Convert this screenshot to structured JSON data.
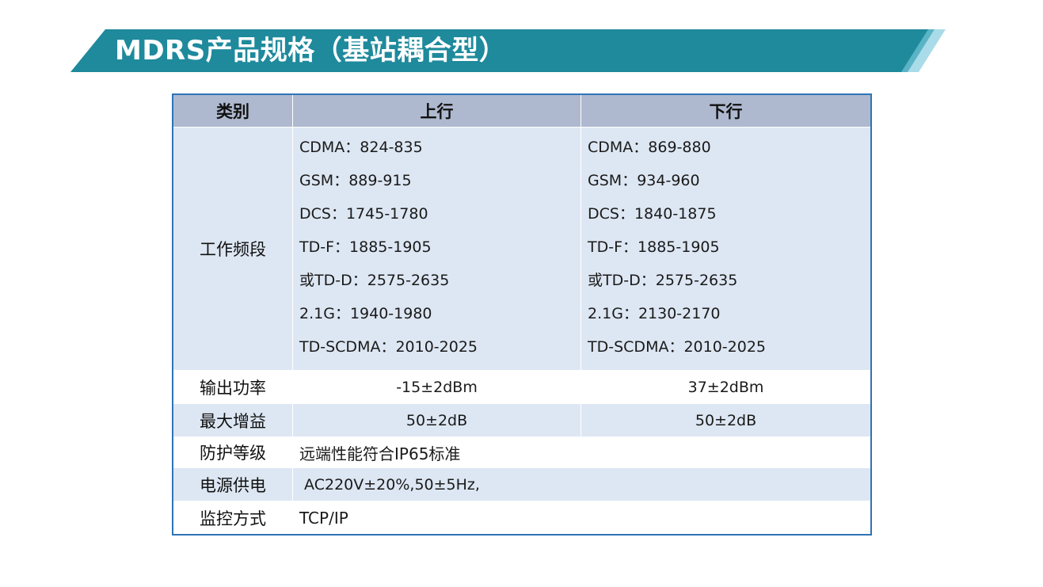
{
  "title": "MDRS产品规格（基站耦合型）",
  "colors": {
    "banner": "#1e8a9c",
    "banner_light": "#a9dbe8",
    "header_bg": "#aeb9cf",
    "row_blue": "#dde7f3",
    "border": "#2e74b5"
  },
  "table": {
    "headers": {
      "category": "类别",
      "uplink": "上行",
      "downlink": "下行"
    },
    "freq": {
      "label": "工作频段",
      "uplink": [
        "CDMA：824-835",
        "GSM：889-915",
        "DCS：1745-1780",
        "TD-F：1885-1905",
        "或TD-D：2575-2635",
        "2.1G：1940-1980",
        "TD-SCDMA：2010-2025"
      ],
      "downlink": [
        "CDMA：869-880",
        "GSM：934-960",
        "DCS：1840-1875",
        "TD-F：1885-1905",
        "或TD-D：2575-2635",
        "2.1G：2130-2170",
        "TD-SCDMA：2010-2025"
      ]
    },
    "output_power": {
      "label": "输出功率",
      "uplink": "-15±2dBm",
      "downlink": "37±2dBm"
    },
    "max_gain": {
      "label": "最大增益",
      "uplink": "50±2dB",
      "downlink": "50±2dB"
    },
    "protection": {
      "label": "防护等级",
      "value": "远端性能符合IP65标准"
    },
    "power_supply": {
      "label": "电源供电",
      "value": " AC220V±20%,50±5Hz,"
    },
    "monitoring": {
      "label": "监控方式",
      "value": "TCP/IP"
    }
  }
}
